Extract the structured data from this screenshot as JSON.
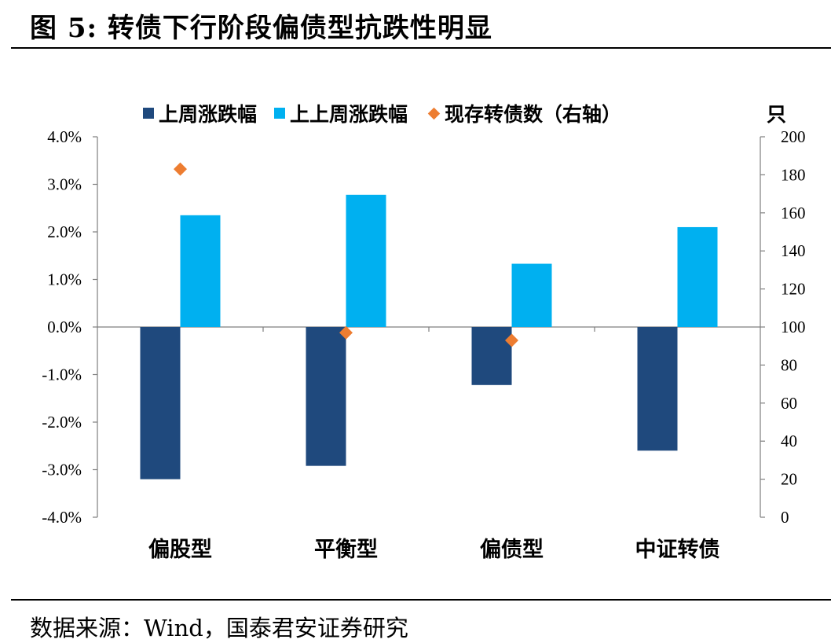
{
  "title": "图 5:  转债下行阶段偏债型抗跌性明显",
  "source": "数据来源：Wind，国泰君安证券研究",
  "colors": {
    "series_last_week": "#1f497d",
    "series_prev_week": "#00b0f0",
    "series_count": "#ed7d31"
  },
  "chart_data": {
    "type": "bar",
    "categories": [
      "偏股型",
      "平衡型",
      "偏债型",
      "中证转债"
    ],
    "series": [
      {
        "name": "上周涨跌幅",
        "axis": "left",
        "values": [
          -3.2,
          -2.92,
          -1.22,
          -2.6
        ]
      },
      {
        "name": "上上周涨跌幅",
        "axis": "left",
        "values": [
          2.35,
          2.78,
          1.33,
          2.1
        ]
      },
      {
        "name": "现存转债数（右轴）",
        "axis": "right",
        "type": "scatter",
        "values": [
          183,
          97,
          93,
          null
        ]
      }
    ],
    "left_axis": {
      "ylim": [
        -4.0,
        4.0
      ],
      "ticks": [
        "4.0%",
        "3.0%",
        "2.0%",
        "1.0%",
        "0.0%",
        "-1.0%",
        "-2.0%",
        "-3.0%",
        "-4.0%"
      ]
    },
    "right_axis": {
      "ylim": [
        0,
        200
      ],
      "unit": "只",
      "ticks": [
        "200",
        "180",
        "160",
        "140",
        "120",
        "100",
        "80",
        "60",
        "40",
        "20",
        "0"
      ]
    },
    "legend_position": "top"
  }
}
